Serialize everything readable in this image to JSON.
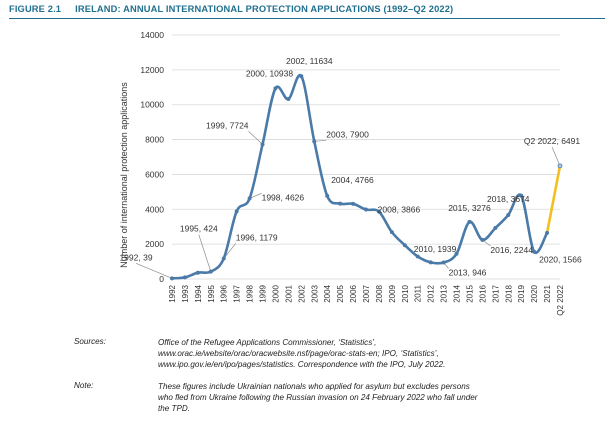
{
  "figure": {
    "number": "FIGURE 2.1",
    "title": "IRELAND: ANNUAL INTERNATIONAL PROTECTION APPLICATIONS (1992–Q2 2022)"
  },
  "chart_data": {
    "type": "line",
    "ylabel": "Number of international protection applications",
    "xlabel": "",
    "ylim": [
      0,
      14000
    ],
    "yticks": [
      0,
      2000,
      4000,
      6000,
      8000,
      10000,
      12000,
      14000
    ],
    "grid": true,
    "categories": [
      "1992",
      "1993",
      "1994",
      "1995",
      "1996",
      "1997",
      "1998",
      "1999",
      "2000",
      "2001",
      "2002",
      "2003",
      "2004",
      "2005",
      "2006",
      "2007",
      "2008",
      "2009",
      "2010",
      "2011",
      "2012",
      "2013",
      "2014",
      "2015",
      "2016",
      "2017",
      "2018",
      "2019",
      "2020",
      "2021",
      "Q2 2022"
    ],
    "series": [
      {
        "values": [
          39,
          91,
          362,
          424,
          1179,
          3883,
          4626,
          7724,
          10938,
          10325,
          11634,
          7900,
          4766,
          4323,
          4314,
          3985,
          3866,
          2689,
          1939,
          1290,
          956,
          946,
          1448,
          3276,
          2244,
          2926,
          3674,
          4781,
          1566,
          2649,
          6491
        ],
        "color": "#4a7aa8",
        "highlight_last_segment_color": "#f2c01e"
      }
    ],
    "annotations": [
      {
        "x": "1992",
        "text": "1992, 39"
      },
      {
        "x": "1995",
        "text": "1995, 424"
      },
      {
        "x": "1996",
        "text": "1996, 1179"
      },
      {
        "x": "1998",
        "text": "1998, 4626"
      },
      {
        "x": "1999",
        "text": "1999, 7724"
      },
      {
        "x": "2000",
        "text": "2000, 10938"
      },
      {
        "x": "2002",
        "text": "2002, 11634"
      },
      {
        "x": "2003",
        "text": "2003, 7900"
      },
      {
        "x": "2004",
        "text": "2004, 4766"
      },
      {
        "x": "2008",
        "text": "2008, 3866"
      },
      {
        "x": "2010",
        "text": "2010, 1939"
      },
      {
        "x": "2013",
        "text": "2013, 946"
      },
      {
        "x": "2015",
        "text": "2015, 3276"
      },
      {
        "x": "2016",
        "text": "2016, 2244"
      },
      {
        "x": "2018",
        "text": "2018, 3674"
      },
      {
        "x": "2020",
        "text": "2020, 1566"
      },
      {
        "x": "Q2 2022",
        "text": "Q2 2022, 6491"
      }
    ]
  },
  "sources": {
    "label": "Sources:",
    "line1": "Office of the Refugee Applications Commissioner, ‘Statistics’,",
    "line2": "www.orac.ie/website/orac/oracwebsite.nsf/page/orac-stats-en; IPO, ‘Statistics’,",
    "line3": "www.ipo.gov.ie/en/ipo/pages/statistics. Correspondence with the IPO, July 2022."
  },
  "note": {
    "label": "Note:",
    "line1": "These figures include Ukrainian nationals who applied for asylum but excludes persons",
    "line2": "who fled from Ukraine following the Russian invasion on 24 February 2022 who fall under",
    "line3": "the TPD."
  }
}
